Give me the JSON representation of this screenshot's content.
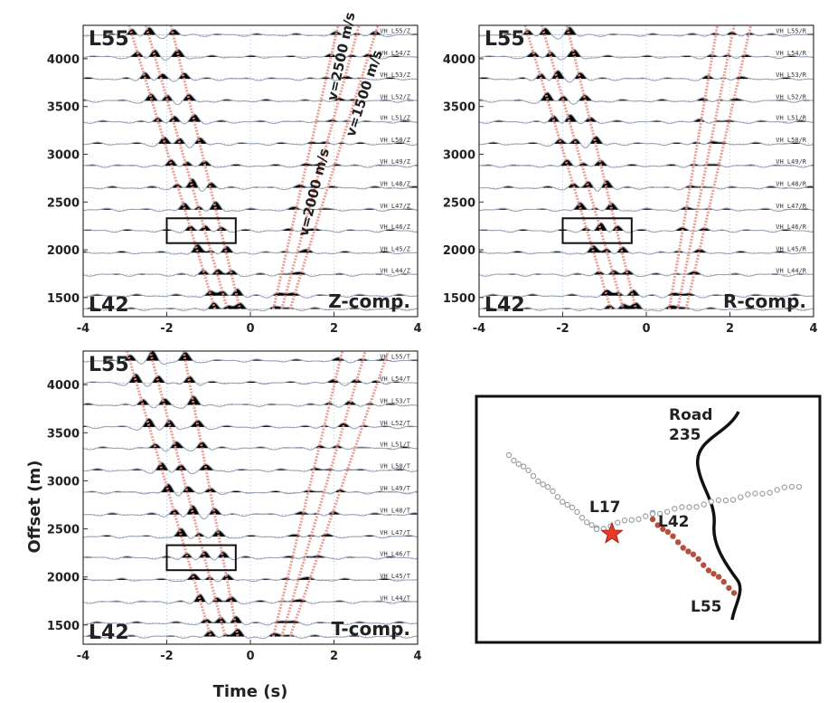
{
  "chart_data": [
    {
      "type": "line",
      "id": "z",
      "component_label": "Z-comp.",
      "xlim": [
        -4,
        4
      ],
      "ylim": [
        1300,
        4350
      ],
      "x_ticks": [
        -4,
        -2,
        0,
        2,
        4
      ],
      "y_ticks": [
        1500,
        2000,
        2500,
        3000,
        3500,
        4000
      ],
      "station_top": "L55",
      "station_bottom": "L42",
      "traces": [
        {
          "label": "VH_L55/Z",
          "offset": 4250
        },
        {
          "label": "VH_L54/Z",
          "offset": 4020
        },
        {
          "label": "VH_L53/Z",
          "offset": 3790
        },
        {
          "label": "VH_L52/Z",
          "offset": 3560
        },
        {
          "label": "VH_L51/Z",
          "offset": 3340
        },
        {
          "label": "VH_L50/Z",
          "offset": 3110
        },
        {
          "label": "VH_L49/Z",
          "offset": 2880
        },
        {
          "label": "VH_L48/Z",
          "offset": 2650
        },
        {
          "label": "VH_L47/Z",
          "offset": 2420
        },
        {
          "label": "VH_L46/Z",
          "offset": 2200
        },
        {
          "label": "VH_L45/Z",
          "offset": 1970
        },
        {
          "label": "VH_L44/Z",
          "offset": 1740
        },
        {
          "label": "",
          "offset": 1520
        },
        {
          "label": "",
          "offset": 1380
        }
      ],
      "moveout_lines": [
        {
          "t": [
            -2.9,
            -0.85
          ],
          "offset": [
            4350,
            1380
          ]
        },
        {
          "t": [
            -2.5,
            -0.55
          ],
          "offset": [
            4350,
            1380
          ]
        },
        {
          "t": [
            -1.9,
            -0.25
          ],
          "offset": [
            4350,
            1380
          ]
        },
        {
          "t": [
            0.55,
            2.1
          ],
          "offset": [
            1380,
            4350
          ]
        },
        {
          "t": [
            0.75,
            2.6
          ],
          "offset": [
            1380,
            4350
          ]
        },
        {
          "t": [
            0.95,
            3.05
          ],
          "offset": [
            1380,
            4350
          ]
        }
      ],
      "velocity_labels": [
        "v=2500 m/s",
        "v=1500 m/s",
        "v=2000 m/s"
      ],
      "box": {
        "t": [
          -2,
          -0.35
        ],
        "offset": [
          2070,
          2330
        ]
      }
    },
    {
      "type": "line",
      "id": "r",
      "component_label": "R-comp.",
      "xlim": [
        -4,
        4
      ],
      "ylim": [
        1300,
        4350
      ],
      "x_ticks": [
        -4,
        -2,
        0,
        2,
        4
      ],
      "y_ticks": [
        1500,
        2000,
        2500,
        3000,
        3500,
        4000
      ],
      "station_top": "L55",
      "station_bottom": "L42",
      "traces": [
        {
          "label": "VH_L55/R",
          "offset": 4250
        },
        {
          "label": "VH_L54/R",
          "offset": 4020
        },
        {
          "label": "VH_L53/R",
          "offset": 3790
        },
        {
          "label": "VH_L52/R",
          "offset": 3560
        },
        {
          "label": "VH_L51/R",
          "offset": 3340
        },
        {
          "label": "VH_L50/R",
          "offset": 3110
        },
        {
          "label": "VH_L49/R",
          "offset": 2880
        },
        {
          "label": "VH_L48/R",
          "offset": 2650
        },
        {
          "label": "VH_L47/R",
          "offset": 2420
        },
        {
          "label": "VH_L46/R",
          "offset": 2200
        },
        {
          "label": "VH_L45/R",
          "offset": 1970
        },
        {
          "label": "VH_L44/R",
          "offset": 1740
        },
        {
          "label": "",
          "offset": 1520
        },
        {
          "label": "",
          "offset": 1380
        }
      ],
      "moveout_lines": [
        {
          "t": [
            -2.9,
            -0.85
          ],
          "offset": [
            4350,
            1380
          ]
        },
        {
          "t": [
            -2.5,
            -0.55
          ],
          "offset": [
            4350,
            1380
          ]
        },
        {
          "t": [
            -1.9,
            -0.25
          ],
          "offset": [
            4350,
            1380
          ]
        },
        {
          "t": [
            0.55,
            1.7
          ],
          "offset": [
            1380,
            4350
          ]
        },
        {
          "t": [
            0.75,
            2.1
          ],
          "offset": [
            1380,
            4350
          ]
        },
        {
          "t": [
            0.95,
            2.5
          ],
          "offset": [
            1380,
            4350
          ]
        }
      ],
      "box": {
        "t": [
          -2,
          -0.35
        ],
        "offset": [
          2070,
          2330
        ]
      }
    },
    {
      "type": "line",
      "id": "t",
      "component_label": "T-comp.",
      "xlim": [
        -4,
        4
      ],
      "ylim": [
        1300,
        4350
      ],
      "x_ticks": [
        -4,
        -2,
        0,
        2,
        4
      ],
      "y_ticks": [
        1500,
        2000,
        2500,
        3000,
        3500,
        4000
      ],
      "xlabel": "Time (s)",
      "ylabel": "Offset (m)",
      "station_top": "L55",
      "station_bottom": "L42",
      "traces": [
        {
          "label": "VH_L55/T",
          "offset": 4250
        },
        {
          "label": "VH_L54/T",
          "offset": 4020
        },
        {
          "label": "VH_L53/T",
          "offset": 3790
        },
        {
          "label": "VH_L52/T",
          "offset": 3560
        },
        {
          "label": "VH_L51/T",
          "offset": 3340
        },
        {
          "label": "VH_L50/T",
          "offset": 3110
        },
        {
          "label": "VH_L49/T",
          "offset": 2880
        },
        {
          "label": "VH_L48/T",
          "offset": 2650
        },
        {
          "label": "VH_L47/T",
          "offset": 2420
        },
        {
          "label": "VH_L46/T",
          "offset": 2200
        },
        {
          "label": "VH_L45/T",
          "offset": 1970
        },
        {
          "label": "VH_L44/T",
          "offset": 1740
        },
        {
          "label": "",
          "offset": 1520
        },
        {
          "label": "",
          "offset": 1380
        }
      ],
      "moveout_lines": [
        {
          "t": [
            -2.95,
            -0.95
          ],
          "offset": [
            4350,
            1380
          ]
        },
        {
          "t": [
            -2.4,
            -0.6
          ],
          "offset": [
            4350,
            1380
          ]
        },
        {
          "t": [
            -1.6,
            -0.3
          ],
          "offset": [
            4350,
            1380
          ]
        },
        {
          "t": [
            0.55,
            2.2
          ],
          "offset": [
            1380,
            4350
          ]
        },
        {
          "t": [
            0.75,
            2.75
          ],
          "offset": [
            1380,
            4350
          ]
        },
        {
          "t": [
            0.95,
            3.3
          ],
          "offset": [
            1380,
            4350
          ]
        }
      ],
      "box": {
        "t": [
          -2,
          -0.35
        ],
        "offset": [
          2070,
          2330
        ]
      }
    }
  ],
  "map": {
    "road_label_line1": "Road",
    "road_label_line2": "235",
    "source_station": "L17",
    "near_station": "L42",
    "far_station": "L55"
  },
  "colors": {
    "moveout": "#e8958a",
    "wiggle_fill": "#000000",
    "wiggle_neg": "#9aa4b4",
    "source_star": "#e83b2a",
    "array_highlight": "#b5503c",
    "array_other": "#9aa0a6",
    "grid": "#b9c3d6"
  }
}
